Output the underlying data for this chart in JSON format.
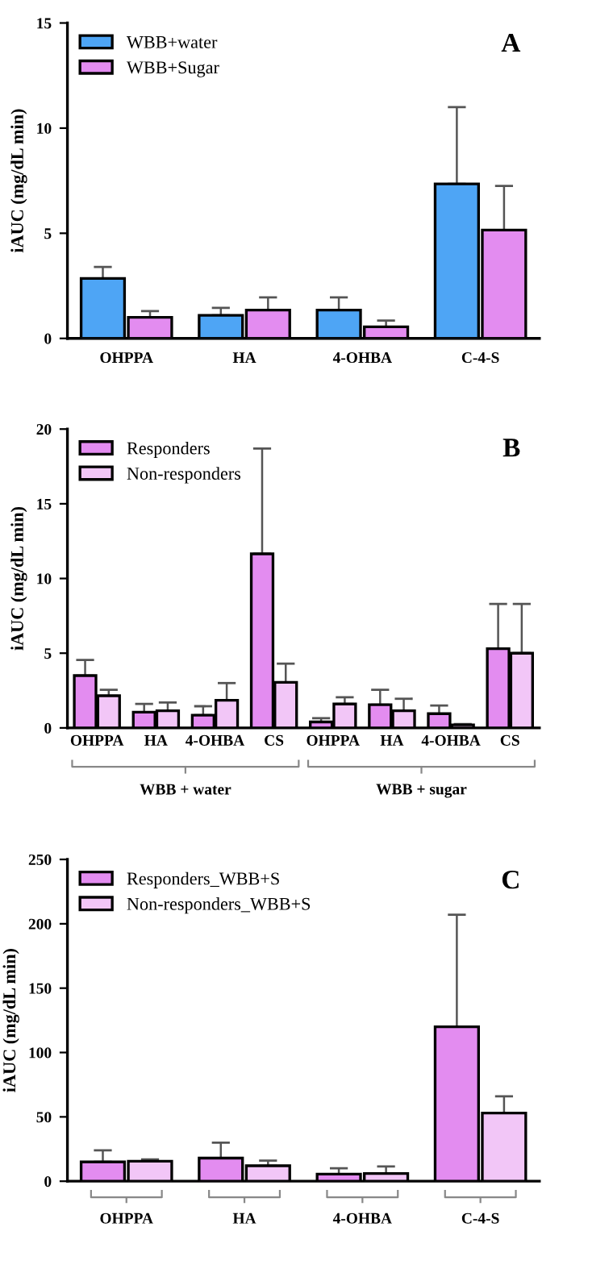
{
  "chart_data": [
    {
      "type": "bar",
      "ylabel": "iAUC (mg/dL min)",
      "categories": [
        "OHPPA",
        "HA",
        "4-OHBA",
        "C-4-S"
      ],
      "ylim": [
        0,
        15
      ],
      "yticks": [
        0,
        5,
        10,
        15
      ],
      "legend": "top left",
      "grid": false,
      "annotations": [
        "A"
      ],
      "series": [
        {
          "name": "WBB+water",
          "color": "#4ea5f5",
          "values": [
            2.85,
            1.1,
            1.35,
            7.35
          ],
          "errors": [
            [
              2.85,
              3.4
            ],
            [
              1.1,
              1.45
            ],
            [
              1.35,
              1.95
            ],
            [
              7.35,
              11.0
            ]
          ]
        },
        {
          "name": "WBB+Sugar",
          "color": "#e38cf0",
          "values": [
            1.0,
            1.35,
            0.55,
            5.15
          ],
          "errors": [
            [
              1.0,
              1.3
            ],
            [
              1.35,
              1.95
            ],
            [
              0.55,
              0.85
            ],
            [
              5.15,
              7.25
            ]
          ]
        }
      ]
    },
    {
      "type": "bar",
      "ylabel": "iAUC (mg/dL min)",
      "categories": [
        "OHPPA",
        "HA",
        "4-OHBA",
        "CS",
        "OHPPA",
        "HA",
        "4-OHBA",
        "CS"
      ],
      "ylim": [
        0,
        20
      ],
      "yticks": [
        0,
        5,
        10,
        15,
        20
      ],
      "legend": "top left",
      "grid": false,
      "annotations": [
        "B",
        "WBB + water",
        "WBB + sugar"
      ],
      "series": [
        {
          "name": "Responders",
          "color": "#e38cf0",
          "values": [
            3.5,
            1.05,
            0.85,
            11.65,
            0.4,
            1.55,
            0.95,
            5.3
          ],
          "errors": [
            [
              3.5,
              4.55
            ],
            [
              1.05,
              1.6
            ],
            [
              0.85,
              1.45
            ],
            [
              11.65,
              18.7
            ],
            [
              0.4,
              0.65
            ],
            [
              1.55,
              2.55
            ],
            [
              0.95,
              1.5
            ],
            [
              5.3,
              8.3
            ]
          ]
        },
        {
          "name": "Non-responders",
          "color": "#f2c6f7",
          "values": [
            2.15,
            1.15,
            1.85,
            3.05,
            1.6,
            1.15,
            0.2,
            5.0
          ],
          "errors": [
            [
              2.15,
              2.55
            ],
            [
              1.15,
              1.7
            ],
            [
              1.85,
              3.0
            ],
            [
              3.05,
              4.3
            ],
            [
              1.6,
              2.05
            ],
            [
              1.15,
              1.95
            ],
            [
              0.2,
              0.25
            ],
            [
              5.0,
              8.3
            ]
          ]
        }
      ]
    },
    {
      "type": "bar",
      "ylabel": "iAUC (mg/dL min)",
      "categories": [
        "OHPPA",
        "HA",
        "4-OHBA",
        "C-4-S"
      ],
      "ylim": [
        0,
        250
      ],
      "yticks": [
        0,
        50,
        100,
        150,
        200,
        250
      ],
      "legend": "top left",
      "grid": false,
      "annotations": [
        "C"
      ],
      "series": [
        {
          "name": "Responders_WBB+S",
          "color": "#e38cf0",
          "values": [
            15,
            18,
            5.5,
            120
          ],
          "errors": [
            [
              15,
              24
            ],
            [
              18,
              30
            ],
            [
              5.5,
              10
            ],
            [
              120,
              207
            ]
          ]
        },
        {
          "name": "Non-responders_WBB+S",
          "color": "#f2c6f7",
          "values": [
            15.5,
            12,
            6,
            53
          ],
          "errors": [
            [
              15.5,
              17
            ],
            [
              12,
              16
            ],
            [
              6,
              11.5
            ],
            [
              53,
              66
            ]
          ]
        }
      ]
    }
  ]
}
